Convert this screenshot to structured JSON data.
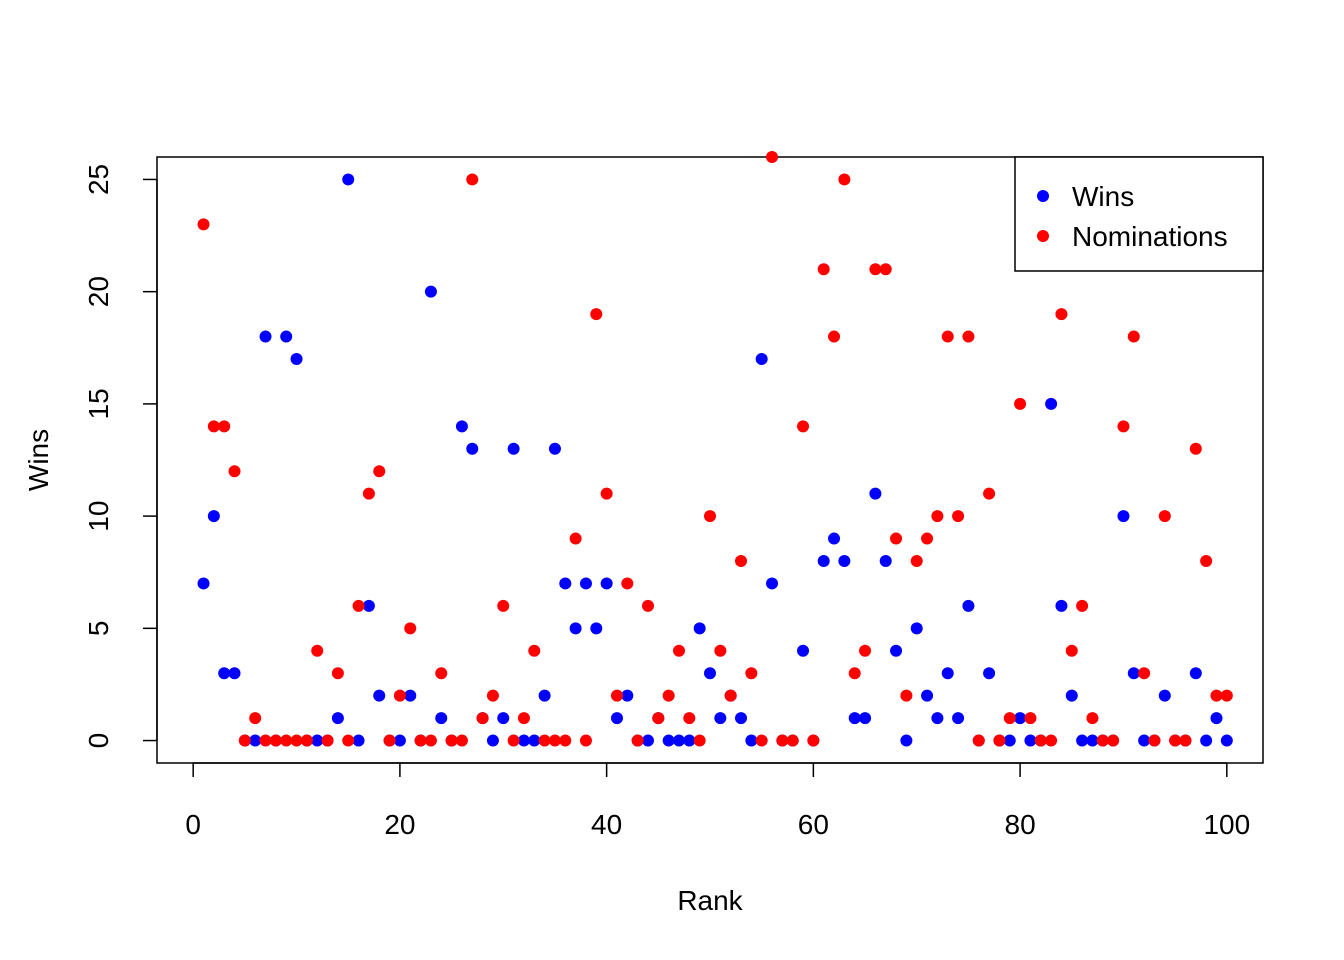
{
  "chart_data": {
    "type": "scatter",
    "xlabel": "Rank",
    "ylabel": "Wins",
    "xlim": [
      -3.5,
      103.5
    ],
    "ylim": [
      -1,
      26
    ],
    "xticks": [
      0,
      20,
      40,
      60,
      80,
      100
    ],
    "yticks": [
      0,
      5,
      10,
      15,
      20,
      25
    ],
    "grid": false,
    "legend_position": "top-right",
    "x": [
      1,
      2,
      3,
      4,
      5,
      6,
      7,
      8,
      9,
      10,
      11,
      12,
      13,
      14,
      15,
      16,
      17,
      18,
      19,
      20,
      21,
      22,
      23,
      24,
      25,
      26,
      27,
      28,
      29,
      30,
      31,
      32,
      33,
      34,
      35,
      36,
      37,
      38,
      39,
      40,
      41,
      42,
      43,
      44,
      45,
      46,
      47,
      48,
      49,
      50,
      51,
      52,
      53,
      54,
      55,
      56,
      57,
      58,
      59,
      60,
      61,
      62,
      63,
      64,
      65,
      66,
      67,
      68,
      69,
      70,
      71,
      72,
      73,
      74,
      75,
      76,
      77,
      78,
      79,
      80,
      81,
      82,
      83,
      84,
      85,
      86,
      87,
      88,
      89,
      90,
      91,
      92,
      93,
      94,
      95,
      96,
      97,
      98,
      99,
      100
    ],
    "series": [
      {
        "name": "Wins",
        "color": "#0000ff",
        "values": [
          7,
          10,
          3,
          3,
          0,
          0,
          18,
          0,
          18,
          17,
          0,
          0,
          0,
          1,
          25,
          0,
          6,
          2,
          0,
          0,
          2,
          0,
          20,
          1,
          0,
          14,
          13,
          1,
          0,
          1,
          13,
          0,
          0,
          2,
          13,
          7,
          5,
          7,
          5,
          7,
          1,
          2,
          0,
          0,
          1,
          0,
          0,
          0,
          5,
          3,
          1,
          2,
          1,
          0,
          17,
          7,
          0,
          0,
          4,
          0,
          8,
          9,
          8,
          1,
          1,
          11,
          8,
          4,
          0,
          5,
          2,
          1,
          3,
          1,
          6,
          0,
          3,
          0,
          0,
          1,
          0,
          0,
          15,
          6,
          2,
          0,
          0,
          0,
          0,
          10,
          3,
          0,
          0,
          2,
          0,
          0,
          3,
          0,
          1,
          0
        ]
      },
      {
        "name": "Nominations",
        "color": "#ff0000",
        "values": [
          23,
          14,
          14,
          12,
          0,
          1,
          0,
          0,
          0,
          0,
          0,
          4,
          0,
          3,
          0,
          6,
          11,
          12,
          0,
          2,
          5,
          0,
          0,
          3,
          0,
          0,
          25,
          1,
          2,
          6,
          0,
          1,
          4,
          0,
          0,
          0,
          9,
          0,
          19,
          11,
          2,
          7,
          0,
          6,
          1,
          2,
          4,
          1,
          0,
          10,
          4,
          2,
          8,
          3,
          0,
          26,
          0,
          0,
          14,
          0,
          21,
          18,
          25,
          3,
          4,
          21,
          21,
          9,
          2,
          8,
          9,
          10,
          18,
          10,
          18,
          0,
          11,
          0,
          1,
          15,
          1,
          0,
          0,
          19,
          4,
          6,
          1,
          0,
          0,
          14,
          18,
          3,
          0,
          10,
          0,
          0,
          13,
          8,
          2,
          2
        ]
      }
    ]
  }
}
